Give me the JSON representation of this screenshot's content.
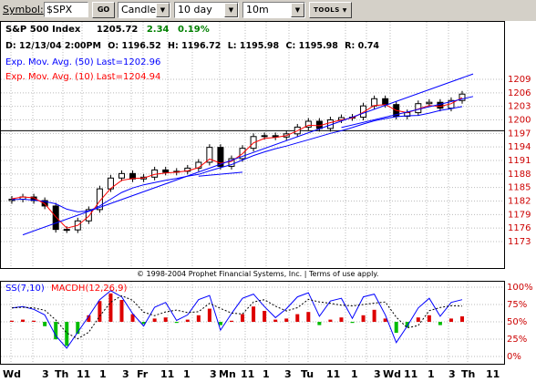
{
  "toolbar": {
    "symbol_label": "Symbol:",
    "symbol_value": "$SPX",
    "go_label": "GO",
    "chart_type": "Candle",
    "period": "10 day",
    "interval": "10m",
    "tools_label": "TOOLS"
  },
  "header": {
    "index_name": "S&P 500 Index",
    "last": "1205.72",
    "change": "2.34",
    "change_pct": "0.19%",
    "ohlc": {
      "date_label": "D:",
      "date": "12/13/04 2:00PM",
      "open_label": "O:",
      "open": "1196.52",
      "high_label": "H:",
      "high": "1196.72",
      "low_label": "L:",
      "low": "1195.98",
      "close_label": "C:",
      "close": "1195.98",
      "range_label": "R:",
      "range": "0.74"
    },
    "ema50_text": "Exp. Mov. Avg. (50) Last=1202.96",
    "ema10_text": "Exp. Mov. Avg. (10) Last=1204.94"
  },
  "colors": {
    "panel_bg": "#d4d0c8",
    "price_axis": "#cc0000",
    "change_up": "#008000",
    "ema50": "#0000ff",
    "ema10": "#ff0000",
    "grid": "#bbbbbb",
    "macd_pos": "#dd0000",
    "macd_neg": "#00bb00"
  },
  "copyright": "© 1998-2004 Prophet Financial Systems, Inc. | Terms of use apply.",
  "indicator": {
    "ss_label": "SS(7,10)",
    "macd_label": "MACDH(12,26,9)",
    "axis_labels": [
      "100%",
      "75%",
      "50%",
      "25%",
      "0%"
    ]
  },
  "chart_data": [
    {
      "type": "candlestick",
      "title": "S&P 500 Index",
      "y_tick_labels": [
        "1209",
        "1206",
        "1203",
        "1200",
        "1197",
        "1194",
        "1191",
        "1188",
        "1185",
        "1182",
        "1179",
        "1176",
        "1173"
      ],
      "ylim": [
        1173,
        1209
      ],
      "x_tick_labels": [
        "Wd",
        "3",
        "Th",
        "11",
        "1",
        "3",
        "Fr",
        "11",
        "1",
        "3",
        "Mn",
        "11",
        "1",
        "3",
        "Tu",
        "11",
        "1",
        "3",
        "Wd",
        "11",
        "1",
        "3",
        "Th",
        "11"
      ],
      "grid": true,
      "series": [
        {
          "name": "Exp. Mov. Avg. (50)",
          "type": "line",
          "values": [
            1182.3,
            1182.4,
            1182.2,
            1181.9,
            1181.4,
            1180.2,
            1179.6,
            1179.8,
            1180.9,
            1182.4,
            1183.9,
            1184.9,
            1185.6,
            1186.1,
            1186.6,
            1187.0,
            1187.5,
            1187.9,
            1188.7,
            1189.4,
            1190.1,
            1191.1,
            1192.1,
            1192.9,
            1193.6,
            1194.2,
            1194.9,
            1195.6,
            1196.3,
            1197.0,
            1197.6,
            1198.3,
            1199.1,
            1199.8,
            1200.3,
            1200.7,
            1200.9,
            1201.0,
            1201.5,
            1202.1,
            1202.5,
            1202.96
          ]
        },
        {
          "name": "Exp. Mov. Avg. (10)",
          "type": "line",
          "values": [
            1182.5,
            1182.9,
            1182.7,
            1181.4,
            1178.5,
            1176.0,
            1176.6,
            1178.6,
            1182.0,
            1184.8,
            1186.6,
            1187.0,
            1187.1,
            1187.9,
            1188.2,
            1188.4,
            1188.7,
            1189.4,
            1191.3,
            1190.4,
            1190.8,
            1192.5,
            1194.9,
            1195.9,
            1196.1,
            1196.5,
            1197.6,
            1198.8,
            1198.7,
            1199.4,
            1200.0,
            1200.4,
            1201.7,
            1203.2,
            1203.4,
            1202.1,
            1201.6,
            1202.4,
            1203.2,
            1203.0,
            1203.6,
            1204.94
          ]
        },
        {
          "name": "trendline",
          "type": "line",
          "points": [
            [
              1,
              1174.5
            ],
            [
              42,
              1210.2
            ]
          ]
        },
        {
          "name": "channel-line",
          "type": "line",
          "points": [
            [
              30,
              1198.3
            ],
            [
              42,
              1205.2
            ]
          ]
        },
        {
          "name": "support-line",
          "type": "line",
          "points": [
            [
              17,
              1187.5
            ],
            [
              21,
              1188.4
            ]
          ]
        }
      ],
      "candles_close": [
        1182.4,
        1182.9,
        1182.1,
        1180.9,
        1175.7,
        1175.6,
        1177.6,
        1180.1,
        1184.7,
        1187.1,
        1188.1,
        1186.9,
        1187.3,
        1188.9,
        1188.4,
        1188.6,
        1189.3,
        1190.6,
        1193.9,
        1189.7,
        1191.4,
        1193.7,
        1196.3,
        1196.5,
        1196.2,
        1196.9,
        1198.4,
        1199.7,
        1198.1,
        1200.0,
        1200.5,
        1200.6,
        1203.1,
        1204.7,
        1203.4,
        1200.8,
        1201.6,
        1203.6,
        1203.9,
        1202.6,
        1204.3,
        1205.72
      ]
    },
    {
      "type": "line+bar",
      "series": [
        {
          "name": "SS(7,10)",
          "type": "line",
          "values": [
            70,
            72,
            68,
            60,
            30,
            12,
            35,
            58,
            82,
            95,
            86,
            62,
            44,
            71,
            78,
            52,
            60,
            82,
            88,
            38,
            62,
            84,
            90,
            72,
            56,
            69,
            86,
            92,
            58,
            80,
            84,
            55,
            86,
            90,
            60,
            20,
            44,
            70,
            84,
            58,
            78,
            82
          ]
        },
        {
          "name": "MACDH(12,26,9)",
          "type": "bar",
          "values": [
            0.1,
            0.2,
            0.1,
            -0.4,
            -1.6,
            -2.2,
            -1.1,
            0.6,
            1.9,
            2.6,
            2.0,
            0.7,
            -0.2,
            0.3,
            0.4,
            -0.1,
            0.2,
            0.6,
            1.2,
            -0.3,
            0.1,
            0.7,
            1.4,
            1.0,
            0.2,
            0.3,
            0.7,
            0.9,
            -0.3,
            0.2,
            0.4,
            -0.1,
            0.6,
            1.1,
            0.3,
            -1.0,
            -0.5,
            0.4,
            0.6,
            -0.3,
            0.3,
            0.5
          ]
        }
      ]
    }
  ]
}
